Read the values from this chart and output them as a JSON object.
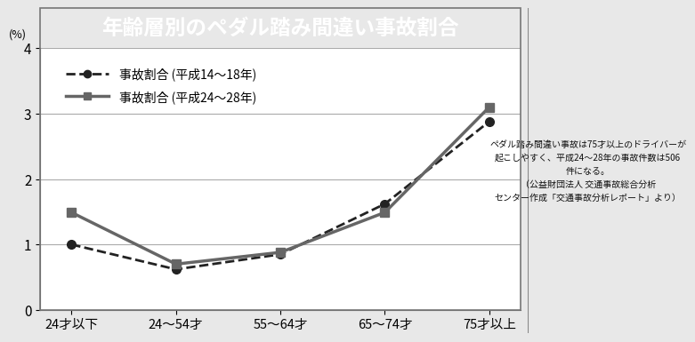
{
  "title": "年齢層別のペダル踏み間違い事故割合",
  "title_bg": "#111111",
  "title_fg": "#ffffff",
  "ylabel": "(%)",
  "categories": [
    "24才以下",
    "24〜54才",
    "55〜64才",
    "65〜74才",
    "75才以上"
  ],
  "series1_label": "事故割合 (平成14〜18年)",
  "series1_values": [
    1.0,
    0.62,
    0.85,
    1.62,
    2.88
  ],
  "series1_color": "#222222",
  "series1_linestyle": "dashed",
  "series1_marker": "o",
  "series2_label": "事故割合 (平成24〜28年)",
  "series2_values": [
    1.49,
    0.7,
    0.88,
    1.49,
    3.1
  ],
  "series2_color": "#666666",
  "series2_linestyle": "solid",
  "series2_marker": "s",
  "ylim": [
    0,
    4
  ],
  "yticks": [
    0,
    1,
    2,
    3,
    4
  ],
  "sidebar_line1": "ペダル踏み間違い事故は75才以上のドライバーが",
  "sidebar_line2": "起こしやすく、平成24〜28年の事故件数は506",
  "sidebar_line3": "件になる。",
  "sidebar_line4": "（公益財団法人 交通事故総合分析",
  "sidebar_line5": "センター作成「交通事故分析レポート」より）",
  "bg_color": "#e8e8e8",
  "plot_bg": "#ffffff",
  "chart_border": "#888888"
}
